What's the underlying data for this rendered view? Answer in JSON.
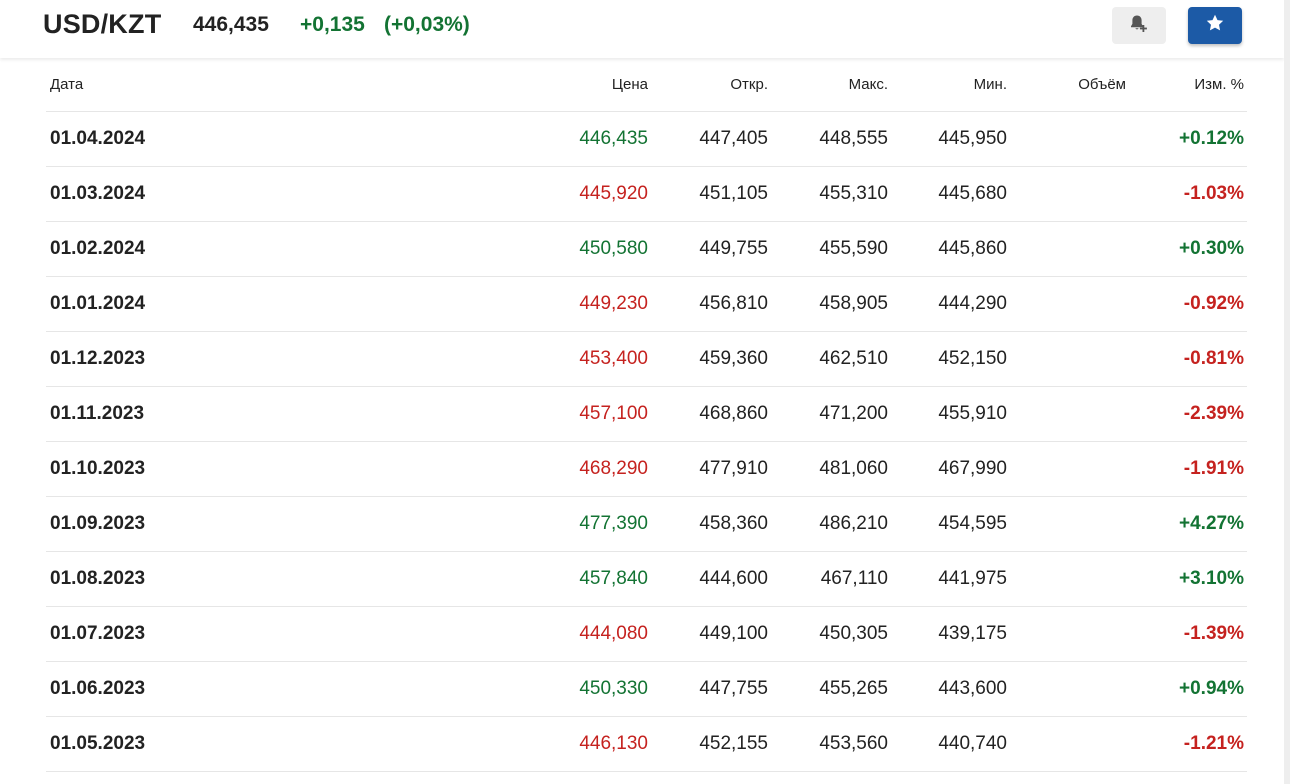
{
  "header": {
    "pair": "USD/KZT",
    "price": "446,435",
    "change": "+0,135",
    "change_pct": "(+0,03%)",
    "change_color": "#137333"
  },
  "buttons": {
    "alert_icon": "bell-plus-icon",
    "favorite_icon": "star-icon",
    "favorite_bg": "#1c5aa6"
  },
  "colors": {
    "positive": "#137333",
    "negative": "#c5221f"
  },
  "table": {
    "columns": {
      "date": "Дата",
      "price": "Цена",
      "open": "Откр.",
      "high": "Макс.",
      "low": "Мин.",
      "volume": "Объём",
      "change": "Изм. %"
    },
    "rows": [
      {
        "date": "01.04.2024",
        "price": "446,435",
        "open": "447,405",
        "high": "448,555",
        "low": "445,950",
        "volume": "",
        "change": "+0.12%",
        "dir": "pos"
      },
      {
        "date": "01.03.2024",
        "price": "445,920",
        "open": "451,105",
        "high": "455,310",
        "low": "445,680",
        "volume": "",
        "change": "-1.03%",
        "dir": "neg"
      },
      {
        "date": "01.02.2024",
        "price": "450,580",
        "open": "449,755",
        "high": "455,590",
        "low": "445,860",
        "volume": "",
        "change": "+0.30%",
        "dir": "pos"
      },
      {
        "date": "01.01.2024",
        "price": "449,230",
        "open": "456,810",
        "high": "458,905",
        "low": "444,290",
        "volume": "",
        "change": "-0.92%",
        "dir": "neg"
      },
      {
        "date": "01.12.2023",
        "price": "453,400",
        "open": "459,360",
        "high": "462,510",
        "low": "452,150",
        "volume": "",
        "change": "-0.81%",
        "dir": "neg"
      },
      {
        "date": "01.11.2023",
        "price": "457,100",
        "open": "468,860",
        "high": "471,200",
        "low": "455,910",
        "volume": "",
        "change": "-2.39%",
        "dir": "neg"
      },
      {
        "date": "01.10.2023",
        "price": "468,290",
        "open": "477,910",
        "high": "481,060",
        "low": "467,990",
        "volume": "",
        "change": "-1.91%",
        "dir": "neg"
      },
      {
        "date": "01.09.2023",
        "price": "477,390",
        "open": "458,360",
        "high": "486,210",
        "low": "454,595",
        "volume": "",
        "change": "+4.27%",
        "dir": "pos"
      },
      {
        "date": "01.08.2023",
        "price": "457,840",
        "open": "444,600",
        "high": "467,110",
        "low": "441,975",
        "volume": "",
        "change": "+3.10%",
        "dir": "pos"
      },
      {
        "date": "01.07.2023",
        "price": "444,080",
        "open": "449,100",
        "high": "450,305",
        "low": "439,175",
        "volume": "",
        "change": "-1.39%",
        "dir": "neg"
      },
      {
        "date": "01.06.2023",
        "price": "450,330",
        "open": "447,755",
        "high": "455,265",
        "low": "443,600",
        "volume": "",
        "change": "+0.94%",
        "dir": "pos"
      },
      {
        "date": "01.05.2023",
        "price": "446,130",
        "open": "452,155",
        "high": "453,560",
        "low": "440,740",
        "volume": "",
        "change": "-1.21%",
        "dir": "neg"
      }
    ]
  }
}
